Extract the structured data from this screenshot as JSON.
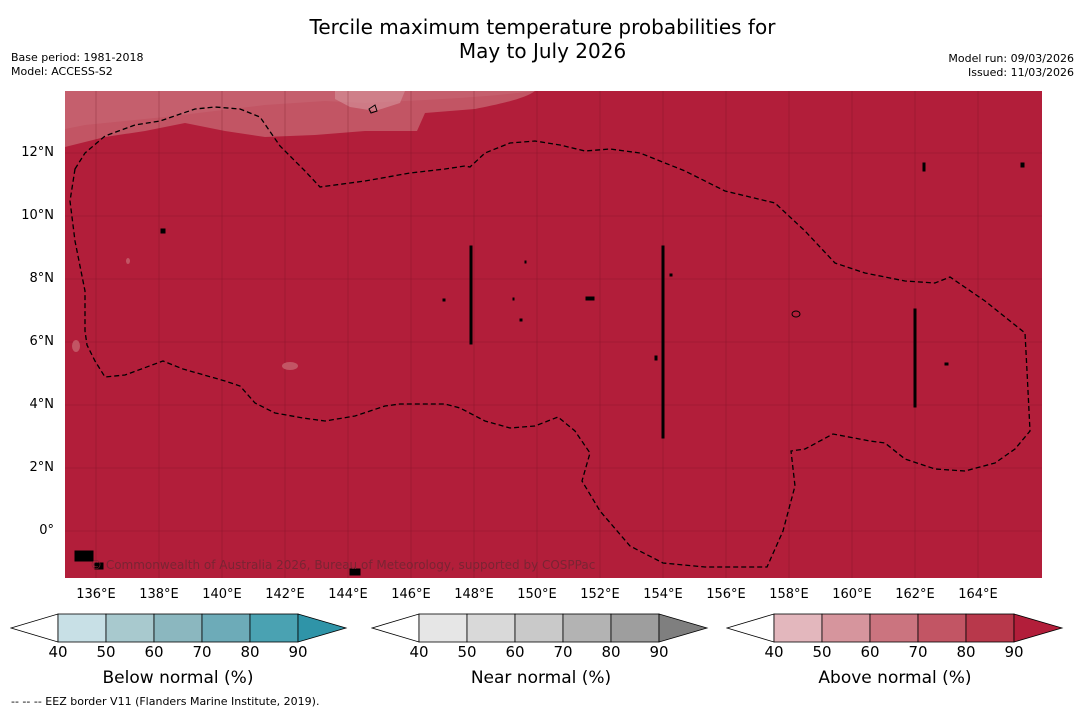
{
  "title_line1": "Tercile maximum temperature probabilities for",
  "title_line2": "May to July 2026",
  "meta_left": [
    "Base period: 1981-2018",
    "Model: ACCESS-S2"
  ],
  "meta_right": [
    "Model run: 09/03/2026",
    "Issued: 11/03/2026"
  ],
  "map": {
    "background_color": "#b21e3a",
    "lat_ticks": [
      "12°N",
      "10°N",
      "8°N",
      "6°N",
      "4°N",
      "2°N",
      "0°"
    ],
    "lon_ticks": [
      "136°E",
      "138°E",
      "140°E",
      "142°E",
      "144°E",
      "146°E",
      "148°E",
      "150°E",
      "152°E",
      "154°E",
      "156°E",
      "158°E",
      "160°E",
      "162°E",
      "164°E"
    ],
    "copyright": "© Commonwealth of Australia 2026, Bureau of Meteorology, supported by COSPPac"
  },
  "colorbars": [
    {
      "name": "below",
      "title": "Below normal (%)",
      "ticks": [
        "40",
        "50",
        "60",
        "70",
        "80",
        "90"
      ],
      "colors": [
        "#ffffff",
        "#c8e0e6",
        "#a8c9ce",
        "#8bb7bf",
        "#6dabb8",
        "#4aa2b2",
        "#2f94a8"
      ]
    },
    {
      "name": "near",
      "title": "Near normal (%)",
      "ticks": [
        "40",
        "50",
        "60",
        "70",
        "80",
        "90"
      ],
      "colors": [
        "#ffffff",
        "#e6e6e6",
        "#d9d9d9",
        "#c9c9c9",
        "#b3b3b3",
        "#9e9e9e",
        "#7f7f7f"
      ]
    },
    {
      "name": "above",
      "title": "Above normal (%)",
      "ticks": [
        "40",
        "50",
        "60",
        "70",
        "80",
        "90"
      ],
      "colors": [
        "#ffffff",
        "#e3b7bd",
        "#d6959d",
        "#cb747f",
        "#c25564",
        "#b8384b",
        "#b21e3a"
      ]
    }
  ],
  "footer": "--  --  -- EEZ border V11 (Flanders Marine Institute, 2019)."
}
